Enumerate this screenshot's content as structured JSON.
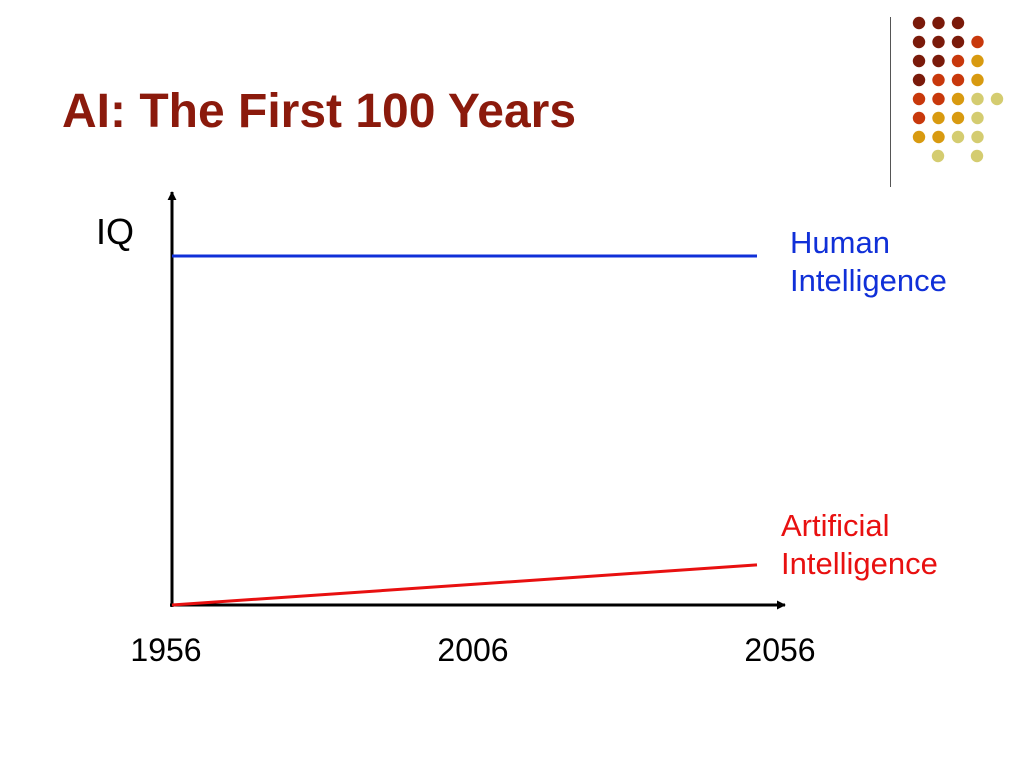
{
  "title": "AI: The First 100 Years",
  "colors": {
    "title": "#8b1a0c",
    "human": "#1030d8",
    "ai": "#e81010",
    "axis": "#000000",
    "dots": [
      "#7a1a0a",
      "#c8380c",
      "#d89a10",
      "#d4cc70"
    ]
  },
  "chart_data": {
    "type": "line",
    "ylabel": "IQ",
    "xlabel": "",
    "x_ticks": [
      "1956",
      "2006",
      "2056"
    ],
    "xlim": [
      1956,
      2056
    ],
    "series": [
      {
        "name": "Human Intelligence",
        "name_lines": [
          "Human",
          "Intelligence"
        ],
        "x": [
          1956,
          2056
        ],
        "y": [
          100,
          100
        ],
        "color": "#1030d8"
      },
      {
        "name": "Artificial Intelligence",
        "name_lines": [
          "Artificial",
          "Intelligence"
        ],
        "x": [
          1956,
          2056
        ],
        "y": [
          0,
          11.5
        ],
        "color": "#e81010"
      }
    ],
    "ylim": [
      0,
      100
    ],
    "grid": false
  }
}
